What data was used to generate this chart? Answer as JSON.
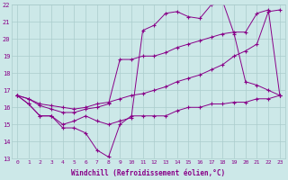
{
  "bg_color": "#cce8e8",
  "grid_color": "#aacccc",
  "line_color": "#880088",
  "marker": "+",
  "xlabel": "Windchill (Refroidissement éolien,°C)",
  "xlabel_color": "#880088",
  "tick_color": "#880088",
  "xlim": [
    -0.5,
    23.5
  ],
  "ylim": [
    13,
    22
  ],
  "xticks": [
    0,
    1,
    2,
    3,
    4,
    5,
    6,
    7,
    8,
    9,
    10,
    11,
    12,
    13,
    14,
    15,
    16,
    17,
    18,
    19,
    20,
    21,
    22,
    23
  ],
  "yticks": [
    13,
    14,
    15,
    16,
    17,
    18,
    19,
    20,
    21,
    22
  ],
  "series": [
    [
      16.7,
      16.2,
      15.5,
      15.5,
      14.8,
      14.8,
      14.5,
      13.5,
      13.1,
      15.0,
      15.5,
      15.5,
      15.5,
      15.5,
      15.8,
      16.0,
      16.0,
      16.2,
      16.2,
      16.3,
      16.3,
      16.5,
      16.5,
      16.7
    ],
    [
      16.7,
      16.2,
      15.5,
      15.5,
      15.0,
      15.2,
      15.5,
      15.2,
      15.0,
      15.2,
      15.4,
      20.5,
      20.8,
      21.5,
      21.6,
      21.3,
      21.2,
      22.0,
      22.2,
      20.3,
      17.5,
      17.3,
      17.0,
      16.7
    ],
    [
      16.7,
      16.5,
      16.1,
      15.9,
      15.7,
      15.7,
      15.9,
      16.0,
      16.2,
      18.8,
      18.8,
      19.0,
      19.0,
      19.2,
      19.5,
      19.7,
      19.9,
      20.1,
      20.3,
      20.4,
      20.4,
      21.5,
      21.7,
      16.7
    ],
    [
      16.7,
      16.5,
      16.2,
      16.1,
      16.0,
      15.9,
      16.0,
      16.2,
      16.3,
      16.5,
      16.7,
      16.8,
      17.0,
      17.2,
      17.5,
      17.7,
      17.9,
      18.2,
      18.5,
      19.0,
      19.3,
      19.7,
      21.6,
      21.7
    ]
  ]
}
